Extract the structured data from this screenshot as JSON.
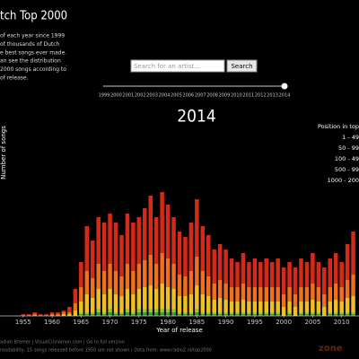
{
  "header": {
    "title": "tch Top 2000",
    "description": [
      "of each year since 1999",
      "of thousands of Dutch",
      "e best songs ever made.",
      "an see the distribution",
      "2000 songs according to",
      "of release."
    ]
  },
  "search": {
    "placeholder": "Search for an artist...",
    "button": "Search"
  },
  "slider": {
    "years": [
      "1999",
      "2000",
      "2001",
      "2002",
      "2003",
      "2004",
      "2005",
      "2006",
      "2007",
      "2008",
      "2009",
      "2010",
      "2011",
      "2012",
      "2013",
      "2014"
    ],
    "selected": "2014"
  },
  "footer": [
    "adiah Bremer | VisualCinnamon.com | Go to full version",
    "readability, 15 songs released before 1950 are not shown | Data from: www.radio2.nl/top2000"
  ],
  "watermark": "zone",
  "chart_data": {
    "type": "stacked_bar",
    "title": "2014",
    "xlabel": "Year of release",
    "ylabel": "Number of songs",
    "legend_title": "Position in top",
    "x": [
      1955,
      1956,
      1957,
      1958,
      1959,
      1960,
      1961,
      1962,
      1963,
      1964,
      1965,
      1966,
      1967,
      1968,
      1969,
      1970,
      1971,
      1972,
      1973,
      1974,
      1975,
      1976,
      1977,
      1978,
      1979,
      1980,
      1981,
      1982,
      1983,
      1984,
      1985,
      1986,
      1987,
      1988,
      1989,
      1990,
      1991,
      1992,
      1993,
      1994,
      1995,
      1996,
      1997,
      1998,
      1999,
      2000,
      2001,
      2002,
      2003,
      2004,
      2005,
      2006,
      2007,
      2008,
      2009,
      2010,
      2011,
      2012
    ],
    "xlim": [
      1951,
      2013
    ],
    "xticks": [
      1955,
      1960,
      1965,
      1970,
      1975,
      1980,
      1985,
      1990,
      1995,
      2000,
      2005,
      2010
    ],
    "ylim": [
      0,
      70
    ],
    "legend": "right",
    "series": [
      {
        "name": "1 - 49",
        "color": "#3c9c3c",
        "values": [
          0,
          0,
          0,
          0,
          0,
          0,
          0,
          0,
          0,
          0,
          1,
          1,
          1,
          2,
          1,
          2,
          1,
          1,
          2,
          1,
          2,
          2,
          2,
          2,
          2,
          2,
          2,
          1,
          1,
          1,
          2,
          1,
          1,
          1,
          1,
          1,
          1,
          1,
          1,
          1,
          1,
          1,
          1,
          1,
          1,
          0,
          1,
          0,
          1,
          1,
          1,
          1,
          0,
          1,
          1,
          1,
          1,
          1
        ]
      },
      {
        "name": "50 - 99",
        "color": "#a8c030",
        "values": [
          0,
          0,
          0,
          0,
          0,
          0,
          0,
          0,
          0,
          0,
          1,
          1,
          1,
          2,
          1,
          2,
          1,
          1,
          2,
          1,
          2,
          2,
          2,
          2,
          2,
          2,
          2,
          1,
          1,
          1,
          2,
          1,
          1,
          1,
          1,
          1,
          1,
          1,
          1,
          1,
          1,
          1,
          1,
          1,
          1,
          0,
          1,
          0,
          1,
          1,
          1,
          1,
          0,
          1,
          1,
          1,
          1,
          1
        ]
      },
      {
        "name": "100 - 49",
        "color": "#f0c020",
        "values": [
          0,
          0,
          0,
          0,
          0,
          0,
          0,
          1,
          1,
          3,
          6,
          10,
          8,
          11,
          10,
          11,
          10,
          9,
          11,
          10,
          11,
          12,
          13,
          11,
          14,
          12,
          11,
          9,
          9,
          10,
          13,
          10,
          9,
          7,
          8,
          7,
          6,
          6,
          7,
          6,
          6,
          6,
          6,
          6,
          6,
          5,
          6,
          5,
          6,
          6,
          7,
          6,
          5,
          6,
          7,
          6,
          8,
          9
        ]
      },
      {
        "name": "500 - 99",
        "color": "#f07020",
        "values": [
          0,
          0,
          1,
          0,
          0,
          1,
          1,
          1,
          1,
          4,
          8,
          13,
          11,
          14,
          13,
          14,
          13,
          11,
          14,
          13,
          14,
          15,
          17,
          14,
          17,
          16,
          14,
          12,
          11,
          13,
          16,
          13,
          11,
          9,
          10,
          9,
          8,
          8,
          9,
          8,
          8,
          8,
          8,
          8,
          8,
          7,
          8,
          7,
          8,
          8,
          9,
          8,
          7,
          8,
          9,
          8,
          10,
          12
        ]
      },
      {
        "name": "1000 - 200",
        "color": "#d42a1a",
        "values": [
          1,
          1,
          1,
          1,
          1,
          1,
          1,
          1,
          3,
          8,
          14,
          25,
          21,
          26,
          27,
          28,
          27,
          23,
          28,
          27,
          26,
          29,
          33,
          26,
          34,
          30,
          26,
          24,
          22,
          27,
          32,
          25,
          23,
          19,
          20,
          19,
          16,
          14,
          17,
          14,
          16,
          14,
          16,
          14,
          16,
          15,
          14,
          15,
          16,
          14,
          17,
          14,
          15,
          16,
          17,
          14,
          20,
          24
        ]
      }
    ]
  }
}
